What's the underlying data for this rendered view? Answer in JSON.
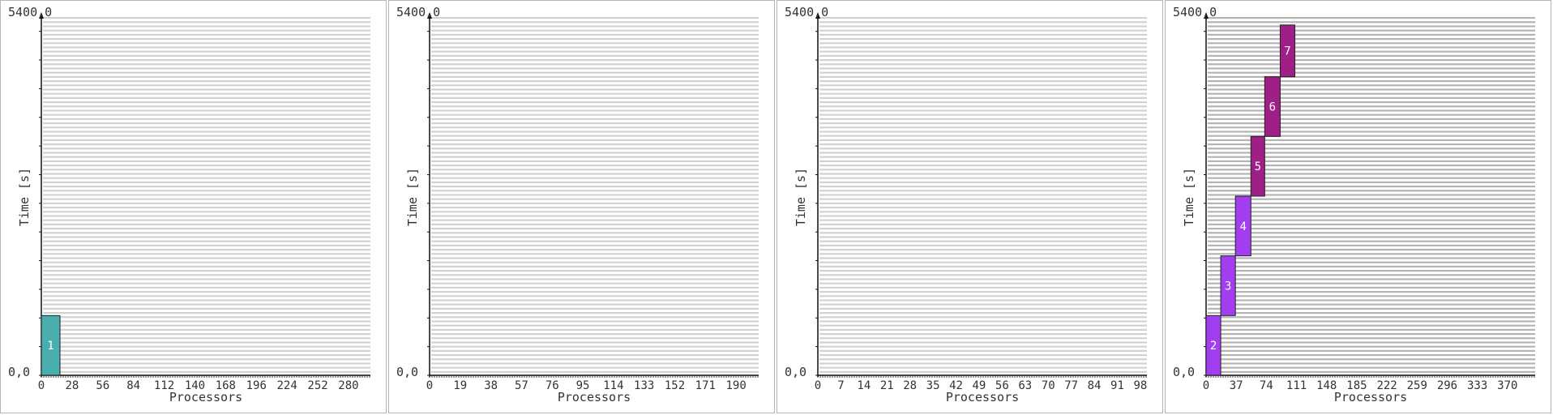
{
  "chart_data": [
    {
      "type": "bar",
      "title": "",
      "xlabel": "Processors",
      "ylabel": "Time [s]",
      "y_top_label": "5400,0",
      "y_bottom_label": "0,0",
      "ylim": [
        0,
        5400
      ],
      "xlim": [
        0,
        300
      ],
      "x_ticks": [
        "0",
        "28",
        "56",
        "84",
        "112",
        "140",
        "168",
        "196",
        "224",
        "252",
        "280"
      ],
      "x_tick_values": [
        0,
        28,
        56,
        84,
        112,
        140,
        168,
        196,
        224,
        252,
        280
      ],
      "stripe_color": "#d2d2d2",
      "jobs": [
        {
          "label": "1",
          "x_start": 0,
          "x_end": 17,
          "y_start": 0,
          "y_end": 900,
          "color": "#4aaeae"
        }
      ]
    },
    {
      "type": "bar",
      "title": "",
      "xlabel": "Processors",
      "ylabel": "Time [s]",
      "y_top_label": "5400,0",
      "y_bottom_label": "0,0",
      "ylim": [
        0,
        5400
      ],
      "xlim": [
        0,
        204
      ],
      "x_ticks": [
        "0",
        "19",
        "38",
        "57",
        "76",
        "95",
        "114",
        "133",
        "152",
        "171",
        "190"
      ],
      "x_tick_values": [
        0,
        19,
        38,
        57,
        76,
        95,
        114,
        133,
        152,
        171,
        190
      ],
      "stripe_color": "#d2d2d2",
      "jobs": []
    },
    {
      "type": "bar",
      "title": "",
      "xlabel": "Processors",
      "ylabel": "Time [s]",
      "y_top_label": "5400,0",
      "y_bottom_label": "0,0",
      "ylim": [
        0,
        5400
      ],
      "xlim": [
        0,
        100
      ],
      "x_ticks": [
        "0",
        "7",
        "14",
        "21",
        "28",
        "35",
        "42",
        "49",
        "56",
        "63",
        "70",
        "77",
        "84",
        "91",
        "98"
      ],
      "x_tick_values": [
        0,
        7,
        14,
        21,
        28,
        35,
        42,
        49,
        56,
        63,
        70,
        77,
        84,
        91,
        98
      ],
      "stripe_color": "#d2d2d2",
      "jobs": []
    },
    {
      "type": "bar",
      "title": "",
      "xlabel": "Processors",
      "ylabel": "Time [s]",
      "y_top_label": "5400,0",
      "y_bottom_label": "0,0",
      "ylim": [
        0,
        5400
      ],
      "xlim": [
        0,
        404
      ],
      "x_ticks": [
        "0",
        "37",
        "74",
        "111",
        "148",
        "185",
        "222",
        "259",
        "296",
        "333",
        "370"
      ],
      "x_tick_values": [
        0,
        37,
        74,
        111,
        148,
        185,
        222,
        259,
        296,
        333,
        370
      ],
      "stripe_color": "#b4b4b4",
      "jobs": [
        {
          "label": "2",
          "x_start": 0,
          "x_end": 18,
          "y_start": 0,
          "y_end": 900,
          "color": "#a23ef0"
        },
        {
          "label": "3",
          "x_start": 18,
          "x_end": 36,
          "y_start": 900,
          "y_end": 1800,
          "color": "#a23ef0"
        },
        {
          "label": "4",
          "x_start": 36,
          "x_end": 55,
          "y_start": 1800,
          "y_end": 2700,
          "color": "#a23ef0"
        },
        {
          "label": "5",
          "x_start": 55,
          "x_end": 72,
          "y_start": 2700,
          "y_end": 3600,
          "color": "#9e1f86"
        },
        {
          "label": "6",
          "x_start": 72,
          "x_end": 91,
          "y_start": 3600,
          "y_end": 4500,
          "color": "#9e1f86"
        },
        {
          "label": "7",
          "x_start": 91,
          "x_end": 109,
          "y_start": 4500,
          "y_end": 5280,
          "color": "#9e1f86"
        }
      ]
    }
  ]
}
